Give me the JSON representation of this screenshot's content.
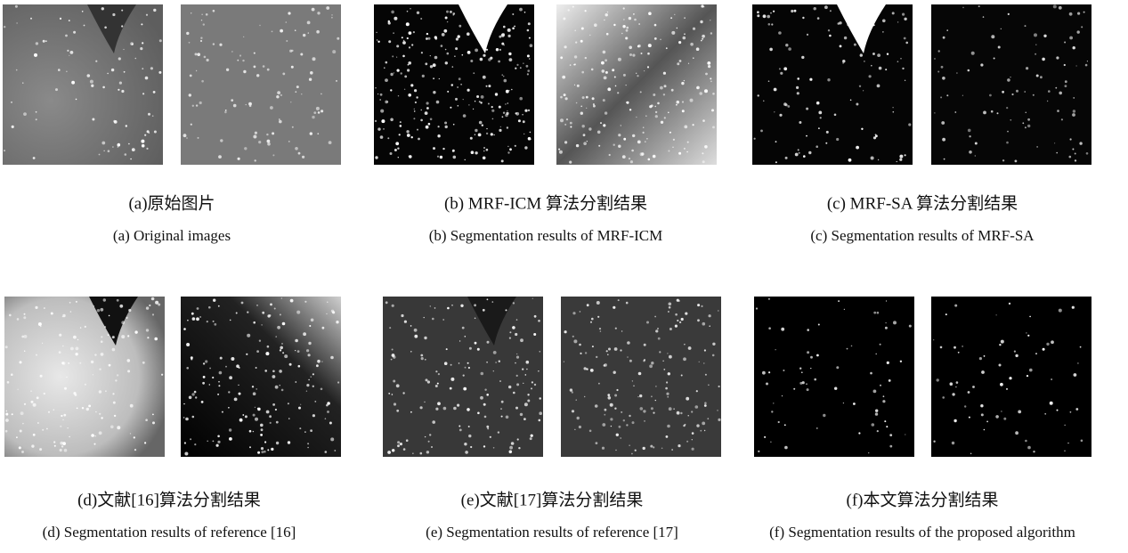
{
  "panels": [
    {
      "zh": "(a)原始图片",
      "en": "(a) Original images"
    },
    {
      "zh": "(b) MRF-ICM 算法分割结果",
      "en": "(b) Segmentation results of MRF-ICM"
    },
    {
      "zh": "(c) MRF-SA 算法分割结果",
      "en": "(c) Segmentation results of MRF-SA"
    },
    {
      "zh": "(d)文献[16]算法分割结果",
      "en": "(d) Segmentation results of reference [16]"
    },
    {
      "zh": "(e)文献[17]算法分割结果",
      "en": "(e) Segmentation results of reference [17]"
    },
    {
      "zh": "(f)本文算法分割结果",
      "en": "(f) Segmentation results of the proposed algorithm"
    }
  ]
}
